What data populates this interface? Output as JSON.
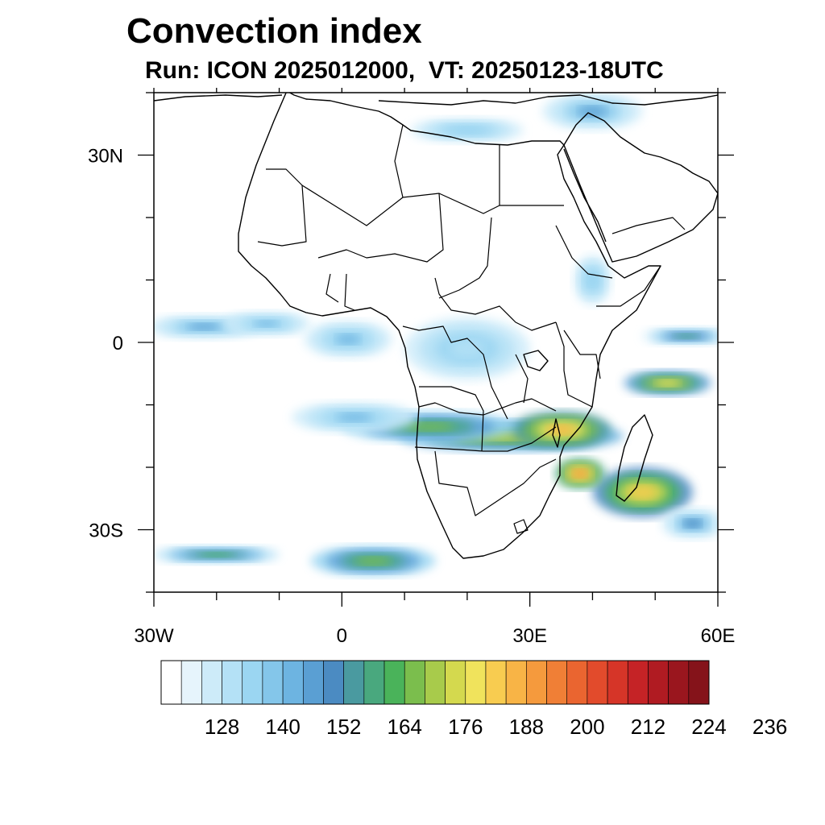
{
  "title": "Convection index",
  "subtitle": "Run: ICON 2025012000,  VT: 20250123-18UTC",
  "map": {
    "extent": {
      "lon": [
        -30,
        60
      ],
      "lat": [
        -40,
        40
      ]
    },
    "lat_ticks": [
      {
        "value": 30,
        "label": "30N"
      },
      {
        "value": 0,
        "label": "0"
      },
      {
        "value": -30,
        "label": "30S"
      }
    ],
    "lon_ticks": [
      {
        "value": -30,
        "label": "30W"
      },
      {
        "value": 0,
        "label": "0"
      },
      {
        "value": 30,
        "label": "30E"
      },
      {
        "value": 60,
        "label": "60E"
      }
    ],
    "minor_step_deg": 10
  },
  "colorbar": {
    "colors": [
      "#ffffff",
      "#e6f4fc",
      "#cdebf9",
      "#b4e1f6",
      "#9bd6f2",
      "#84c6ea",
      "#6db4e1",
      "#5a9fd3",
      "#4b8bc2",
      "#4a9aa0",
      "#49a87e",
      "#4ab35a",
      "#7bbe4d",
      "#a8cb4b",
      "#d4d94e",
      "#f0e35c",
      "#f8cc50",
      "#f8b446",
      "#f59a3d",
      "#f07f36",
      "#ea6530",
      "#e24b2c",
      "#d63528",
      "#c52326",
      "#b01b22",
      "#9a161e",
      "#85131a"
    ],
    "labels": [
      "128",
      "140",
      "152",
      "164",
      "176",
      "188",
      "200",
      "212",
      "224",
      "236"
    ]
  },
  "convection_cells": [
    {
      "lon": 27,
      "lat": -15,
      "dlon": 18,
      "dlat": 2.5,
      "level": 14
    },
    {
      "lon": 35,
      "lat": -14,
      "dlon": 8,
      "dlat": 3,
      "level": 17
    },
    {
      "lon": 14,
      "lat": -13.5,
      "dlon": 14,
      "dlat": 2.5,
      "level": 12
    },
    {
      "lon": 48,
      "lat": -24,
      "dlon": 8,
      "dlat": 4,
      "level": 16
    },
    {
      "lon": 38,
      "lat": -21,
      "dlon": 4,
      "dlat": 2.5,
      "level": 18
    },
    {
      "lon": 52,
      "lat": -6.5,
      "dlon": 7,
      "dlat": 2,
      "level": 15
    },
    {
      "lon": 5,
      "lat": -35,
      "dlon": 10,
      "dlat": 2.5,
      "level": 12
    },
    {
      "lon": -20,
      "lat": -34,
      "dlon": 10,
      "dlat": 1.5,
      "level": 11
    },
    {
      "lon": 55,
      "lat": 1,
      "dlon": 7,
      "dlat": 1.5,
      "level": 10
    },
    {
      "lon": 1,
      "lat": 0.5,
      "dlon": 7,
      "dlat": 3,
      "level": 6
    },
    {
      "lon": -22,
      "lat": 2.5,
      "dlon": 9,
      "dlat": 2,
      "level": 7
    },
    {
      "lon": -12,
      "lat": 3,
      "dlon": 7,
      "dlat": 2,
      "level": 6
    },
    {
      "lon": 40,
      "lat": 37,
      "dlon": 8,
      "dlat": 3,
      "level": 7
    },
    {
      "lon": 20,
      "lat": 34,
      "dlon": 9,
      "dlat": 2,
      "level": 4
    },
    {
      "lon": 20,
      "lat": -1,
      "dlon": 10,
      "dlat": 5,
      "level": 3
    },
    {
      "lon": 2,
      "lat": -12,
      "dlon": 10,
      "dlat": 2.5,
      "level": 6
    },
    {
      "lon": 40,
      "lat": 10,
      "dlon": 3,
      "dlat": 4,
      "level": 4
    },
    {
      "lon": 56,
      "lat": -29,
      "dlon": 5,
      "dlat": 2.5,
      "level": 8
    }
  ]
}
